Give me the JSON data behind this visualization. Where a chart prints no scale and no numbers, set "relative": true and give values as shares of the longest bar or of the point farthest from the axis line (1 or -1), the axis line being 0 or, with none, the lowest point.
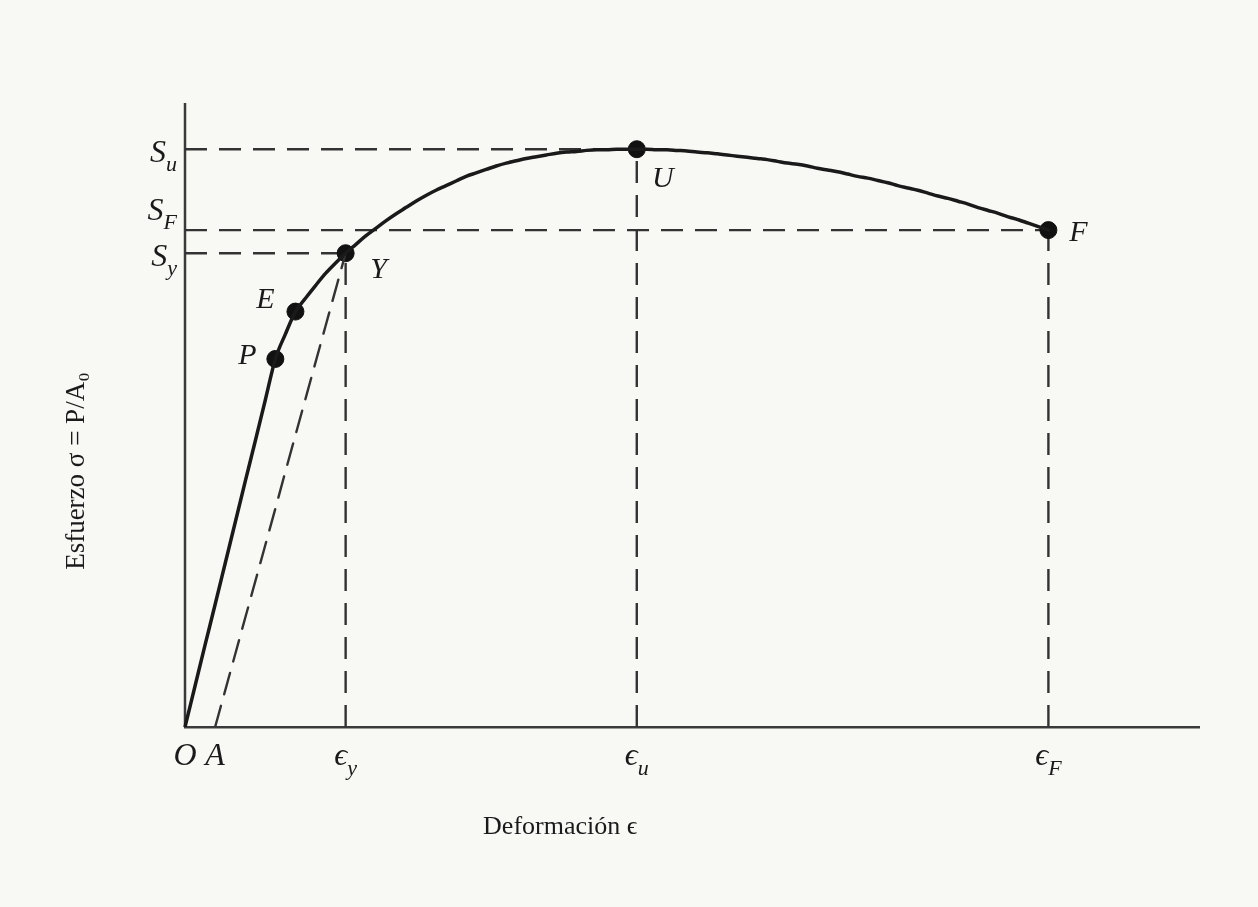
{
  "chart_data": {
    "type": "line",
    "xlabel": "Deformación ϵ",
    "ylabel": "Esfuerzo σ = P/A₀",
    "relative": true,
    "categories": [
      "O",
      null,
      null,
      "A",
      null,
      null,
      null,
      null,
      null,
      null,
      null,
      null,
      null,
      null,
      null,
      null,
      "ϵ$_{y}$",
      null,
      null,
      null,
      null,
      null,
      null,
      null,
      null,
      null,
      null,
      null,
      null,
      null,
      null,
      null,
      null,
      null,
      null,
      null,
      null,
      null,
      null,
      null,
      null,
      null,
      null,
      null,
      null,
      "ϵ$_{u}$",
      null,
      null,
      null,
      null,
      null,
      null,
      null,
      null,
      null,
      null,
      null,
      null,
      null,
      null,
      null,
      null,
      null,
      null,
      null,
      null,
      null,
      null,
      null,
      null,
      null,
      null,
      null,
      null,
      null,
      null,
      null,
      null,
      null,
      null,
      null,
      null,
      null,
      null,
      null,
      null,
      "ϵ$_{F}$",
      null,
      null,
      null,
      null,
      null,
      null,
      null,
      null,
      null,
      null,
      null,
      null,
      null,
      null,
      null
    ],
    "series": [
      {
        "color": "#1a1a1a",
        "values": [
          0,
          0.071,
          0.142,
          0.212,
          0.283,
          0.354,
          0.425,
          0.495,
          0.566,
          0.637,
          0.68,
          0.719,
          0.742,
          0.764,
          0.785,
          0.803,
          0.82,
          0.835,
          0.85,
          0.863,
          0.876,
          0.888,
          0.899,
          0.91,
          0.92,
          0.929,
          0.937,
          0.945,
          0.953,
          0.959,
          0.965,
          0.971,
          0.976,
          0.98,
          0.984,
          0.987,
          0.99,
          0.993,
          0.995,
          0.996,
          0.998,
          0.999,
          0.999,
          1,
          1,
          1,
          1,
          0.999,
          0.999,
          0.998,
          0.997,
          0.995,
          0.994,
          0.992,
          0.99,
          0.988,
          0.986,
          0.984,
          0.982,
          0.979,
          0.976,
          0.974,
          0.971,
          0.967,
          0.964,
          0.961,
          0.957,
          0.953,
          0.95,
          0.946,
          0.942,
          0.937,
          0.933,
          0.929,
          0.924,
          0.919,
          0.915,
          0.91,
          0.905,
          0.899,
          0.894,
          0.889,
          0.883,
          0.878,
          0.872,
          0.866,
          0.86,
          null,
          null,
          null,
          null,
          null,
          null,
          null,
          null,
          null,
          null,
          null,
          null,
          null,
          null,
          null
        ]
      },
      {
        "color": "#333333",
        "line_style": "dashed",
        "values": [
          null,
          null,
          null,
          0,
          0.063,
          0.126,
          0.189,
          0.252,
          0.315,
          0.378,
          0.442,
          0.505,
          0.568,
          0.631,
          0.694,
          0.757,
          0.82,
          null,
          null,
          null,
          null,
          null,
          null,
          null,
          null,
          null,
          null,
          null,
          null,
          null,
          null,
          null,
          null,
          null,
          null,
          null,
          null,
          null,
          null,
          null,
          null,
          null,
          null,
          null,
          null,
          null,
          null,
          null,
          null,
          null,
          null,
          null,
          null,
          null,
          null,
          null,
          null,
          null,
          null,
          null,
          null,
          null,
          null,
          null,
          null,
          null,
          null,
          null,
          null,
          null,
          null,
          null,
          null,
          null,
          null,
          null,
          null,
          null,
          null,
          null,
          null,
          null,
          null,
          null,
          null,
          null,
          null,
          null,
          null,
          null,
          null,
          null,
          null,
          null,
          null,
          null,
          null,
          null,
          null,
          null,
          null,
          null
        ]
      },
      {
        "type": "scatter",
        "color": "#111111",
        "marker": "circle",
        "values": [
          null,
          null,
          null,
          null,
          null,
          null,
          null,
          null,
          null,
          0.637,
          null,
          0.719,
          null,
          null,
          null,
          null,
          0.82,
          null,
          null,
          null,
          null,
          null,
          null,
          null,
          null,
          null,
          null,
          null,
          null,
          null,
          null,
          null,
          null,
          null,
          null,
          null,
          null,
          null,
          null,
          null,
          null,
          null,
          null,
          null,
          null,
          1,
          null,
          null,
          null,
          null,
          null,
          null,
          null,
          null,
          null,
          null,
          null,
          null,
          null,
          null,
          null,
          null,
          null,
          null,
          null,
          null,
          null,
          null,
          null,
          null,
          null,
          null,
          null,
          null,
          null,
          null,
          null,
          null,
          null,
          null,
          null,
          null,
          null,
          null,
          null,
          null,
          0.86,
          null,
          null,
          null,
          null,
          null,
          null,
          null,
          null,
          null,
          null,
          null,
          null,
          null,
          null,
          null
        ]
      }
    ],
    "ref_lines": [
      {
        "axis": "y",
        "value": 1,
        "label": "S$_{u}$",
        "color": "#333333",
        "line_style": "dashed"
      },
      {
        "axis": "y",
        "value": 0.86,
        "label": "S$_{F}$",
        "color": "#333333",
        "line_style": "dashed"
      },
      {
        "axis": "y",
        "value": 0.82,
        "label": "S$_{y}$",
        "color": "#333333",
        "line_style": "dashed"
      },
      {
        "axis": "x",
        "value": "ϵ$_{y}$",
        "color": "#333333",
        "line_style": "dashed"
      },
      {
        "axis": "x",
        "value": "ϵ$_{u}$",
        "color": "#333333",
        "line_style": "dashed"
      },
      {
        "axis": "x",
        "value": "ϵ$_{F}$",
        "color": "#333333",
        "line_style": "dashed"
      }
    ],
    "annotations": [
      "P",
      "E",
      "Y",
      "U",
      "F"
    ]
  }
}
